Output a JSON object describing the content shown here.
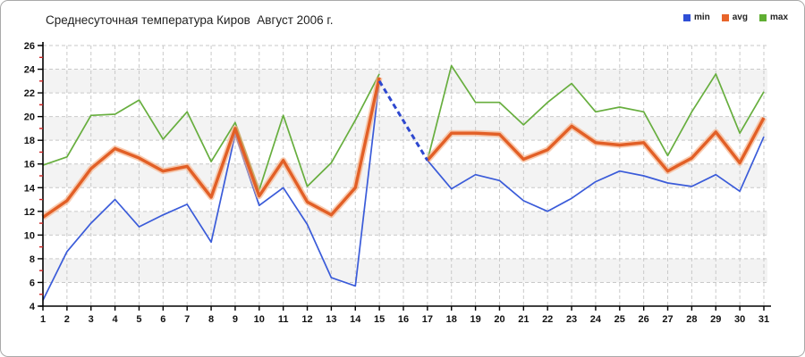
{
  "title": "Среднесуточная температура Киров  Август 2006 г.",
  "legend": [
    {
      "label": "min",
      "color": "#2f4fd6"
    },
    {
      "label": "avg",
      "color": "#e8642a"
    },
    {
      "label": "max",
      "color": "#5fae32"
    }
  ],
  "colors": {
    "min": "#3a5bd9",
    "avg": "#e25f26",
    "avg_halo": "#f6b187",
    "max": "#67ae3e",
    "dashed_bridge": "#2e48cf",
    "grid": "#c9c9c9",
    "band": "#f3f3f3",
    "axis": "#000000",
    "minor_tick": "#cc2222",
    "title_text": "#222222"
  },
  "chart_data": {
    "type": "line",
    "title": "Среднесуточная температура Киров  Август 2006 г.",
    "xlabel": "",
    "ylabel": "",
    "days": [
      1,
      2,
      3,
      4,
      5,
      6,
      7,
      8,
      9,
      10,
      11,
      12,
      13,
      14,
      15,
      16,
      17,
      18,
      19,
      20,
      21,
      22,
      23,
      24,
      25,
      26,
      27,
      28,
      29,
      30,
      31
    ],
    "y_ticks": [
      4,
      6,
      8,
      10,
      12,
      14,
      16,
      18,
      20,
      22,
      24,
      26
    ],
    "ylim": [
      4,
      26
    ],
    "xlim": [
      1,
      31
    ],
    "grid": "dashed",
    "legend_position": "top-right",
    "note": "day 16 has no data; a dashed blue segment bridges the min series from day 15 to day 17; all series converge at 16.3 on day 17",
    "series": [
      {
        "name": "min",
        "values": [
          4.5,
          8.6,
          11.0,
          13.0,
          10.7,
          11.7,
          12.6,
          9.4,
          18.5,
          12.5,
          14.0,
          10.9,
          6.4,
          5.7,
          23.0,
          null,
          16.3,
          13.9,
          15.1,
          14.6,
          12.9,
          12.0,
          13.1,
          14.5,
          15.4,
          15.0,
          14.4,
          14.1,
          15.1,
          13.7,
          18.3
        ]
      },
      {
        "name": "avg",
        "values": [
          11.5,
          12.9,
          15.6,
          17.3,
          16.5,
          15.4,
          15.8,
          13.2,
          19.0,
          13.3,
          16.3,
          12.8,
          11.7,
          14.0,
          23.3,
          null,
          16.3,
          18.6,
          18.6,
          18.5,
          16.4,
          17.2,
          19.2,
          17.8,
          17.6,
          17.8,
          15.4,
          16.5,
          18.7,
          16.1,
          19.9
        ]
      },
      {
        "name": "max",
        "values": [
          15.9,
          16.6,
          20.1,
          20.2,
          21.4,
          18.1,
          20.4,
          16.2,
          19.5,
          13.8,
          20.1,
          14.1,
          16.1,
          19.7,
          23.6,
          null,
          16.3,
          24.3,
          21.2,
          21.2,
          19.3,
          21.2,
          22.8,
          20.4,
          20.8,
          20.4,
          16.7,
          20.4,
          23.6,
          18.6,
          22.1
        ]
      }
    ],
    "gap_bridge": {
      "series": "min",
      "from_day": 15,
      "to_day": 17,
      "style": "dashed"
    }
  }
}
